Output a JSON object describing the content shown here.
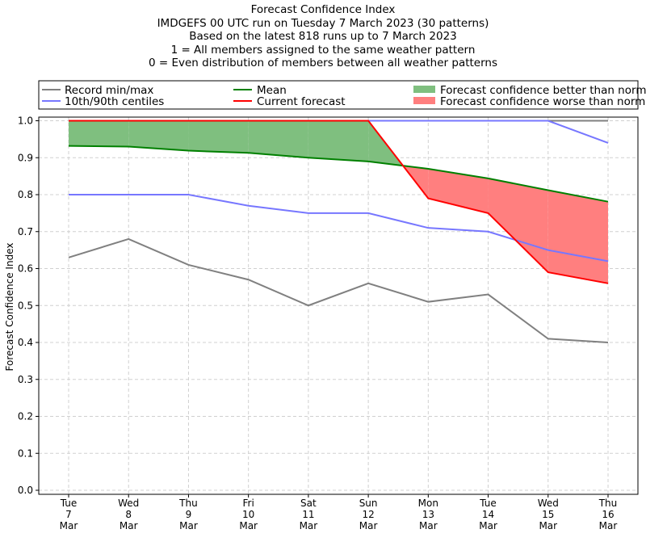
{
  "chart_data": {
    "type": "line",
    "title_lines": [
      "Forecast Confidence Index",
      "IMDGEFS 00 UTC run on Tuesday 7 March 2023 (30 patterns)",
      "Based on the latest 818 runs up to 7 March 2023",
      "1 = All members assigned to the same weather pattern",
      "0 = Even distribution of members between all weather patterns"
    ],
    "ylabel": "Forecast Confidence Index",
    "xlabel": "",
    "ylim": [
      0,
      1
    ],
    "yticks": [
      "0.0",
      "0.1",
      "0.2",
      "0.3",
      "0.4",
      "0.5",
      "0.6",
      "0.7",
      "0.8",
      "0.9",
      "1.0"
    ],
    "categories": [
      [
        "Tue",
        "7",
        "Mar"
      ],
      [
        "Wed",
        "8",
        "Mar"
      ],
      [
        "Thu",
        "9",
        "Mar"
      ],
      [
        "Fri",
        "10",
        "Mar"
      ],
      [
        "Sat",
        "11",
        "Mar"
      ],
      [
        "Sun",
        "12",
        "Mar"
      ],
      [
        "Mon",
        "13",
        "Mar"
      ],
      [
        "Tue",
        "14",
        "Mar"
      ],
      [
        "Wed",
        "15",
        "Mar"
      ],
      [
        "Thu",
        "16",
        "Mar"
      ]
    ],
    "grid": true,
    "legend_position": "top",
    "series": [
      {
        "name": "Record min/max",
        "key": "rec_max",
        "color": "#808080",
        "values": [
          1,
          1,
          1,
          1,
          1,
          1,
          1,
          1,
          1,
          1
        ]
      },
      {
        "name": "",
        "key": "rec_min",
        "color": "#808080",
        "values": [
          0.63,
          0.68,
          0.61,
          0.57,
          0.5,
          0.56,
          0.51,
          0.53,
          0.41,
          0.4
        ]
      },
      {
        "name": "10th/90th centiles",
        "key": "p90",
        "color": "#7777ff",
        "values": [
          1,
          1,
          1,
          1,
          1,
          1,
          1,
          1,
          1,
          0.94
        ]
      },
      {
        "name": "",
        "key": "p10",
        "color": "#7777ff",
        "values": [
          0.8,
          0.8,
          0.8,
          0.77,
          0.75,
          0.75,
          0.71,
          0.7,
          0.65,
          0.62
        ]
      },
      {
        "name": "Mean",
        "key": "mean",
        "color": "#008000",
        "values": [
          0.932,
          0.93,
          0.919,
          0.913,
          0.9,
          0.89,
          0.87,
          0.844,
          0.812,
          0.781
        ]
      },
      {
        "name": "Current forecast",
        "key": "current",
        "color": "#ff0000",
        "values": [
          1,
          1,
          1,
          1,
          1,
          1,
          0.79,
          0.75,
          0.59,
          0.56
        ]
      }
    ],
    "fills": [
      {
        "name": "Forecast confidence better than normal",
        "color": "#7fbf7f"
      },
      {
        "name": "Forecast confidence worse than normal",
        "color": "#ff7f7f"
      }
    ]
  }
}
